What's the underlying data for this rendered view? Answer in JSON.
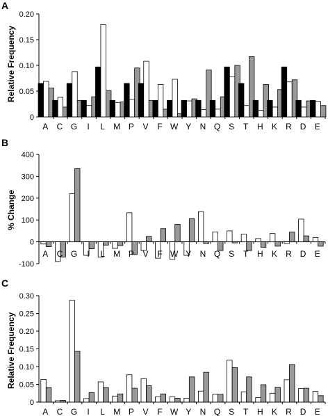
{
  "colors": {
    "black": "#000000",
    "white": "#ffffff",
    "gray": "#999999",
    "axis": "#000000"
  },
  "chart_data": [
    {
      "panel": "A",
      "type": "bar",
      "ylabel": "Relative Frequency",
      "ylim": [
        0,
        0.2
      ],
      "yticks": [
        0,
        0.05,
        0.1,
        0.15,
        0.2
      ],
      "ytick_labels": [
        "0",
        "0.05",
        "0.10",
        "0.15",
        "0.20"
      ],
      "categories": [
        "A",
        "C",
        "G",
        "I",
        "L",
        "M",
        "P",
        "V",
        "F",
        "W",
        "Y",
        "N",
        "Q",
        "S",
        "T",
        "H",
        "K",
        "R",
        "D",
        "E"
      ],
      "series": [
        {
          "fill": "black",
          "values": [
            0.065,
            0.032,
            0.065,
            0.032,
            0.097,
            0.032,
            0.065,
            0.065,
            0.032,
            0.032,
            0.032,
            0.032,
            0.032,
            0.097,
            0.065,
            0.032,
            0.032,
            0.097,
            0.032,
            0.032
          ]
        },
        {
          "fill": "white",
          "values": [
            0.069,
            0.038,
            0.088,
            0.022,
            0.179,
            0.028,
            0.034,
            0.108,
            0.063,
            0.073,
            0.031,
            0.014,
            0.015,
            0.078,
            0.022,
            0.013,
            0.019,
            0.068,
            0.019,
            0.03
          ]
        },
        {
          "fill": "gray",
          "values": [
            0.056,
            0.019,
            0.032,
            0.039,
            0.051,
            0.029,
            0.095,
            0.032,
            0.015,
            0.006,
            0.035,
            0.091,
            0.039,
            0.1,
            0.117,
            0.063,
            0.053,
            0.072,
            0.031,
            0.022
          ]
        }
      ]
    },
    {
      "panel": "B",
      "type": "bar",
      "ylabel": "% Change",
      "ylim": [
        -100,
        400
      ],
      "yticks": [
        -100,
        0,
        100,
        200,
        300,
        400
      ],
      "ytick_labels": [
        "-100",
        "0",
        "100",
        "200",
        "300",
        "400"
      ],
      "categories": [
        "A",
        "C",
        "G",
        "I",
        "L",
        "M",
        "P",
        "V",
        "F",
        "W",
        "Y",
        "N",
        "Q",
        "S",
        "T",
        "H",
        "K",
        "R",
        "D",
        "E"
      ],
      "series": [
        {
          "fill": "white",
          "values": [
            -10,
            -90,
            220,
            -62,
            -70,
            -30,
            133,
            -40,
            -75,
            -80,
            -62,
            138,
            45,
            50,
            35,
            15,
            38,
            -8,
            104,
            20
          ]
        },
        {
          "fill": "gray",
          "values": [
            -22,
            -70,
            335,
            -32,
            -15,
            -17,
            -58,
            25,
            60,
            80,
            106,
            -8,
            -40,
            -5,
            -40,
            -25,
            -20,
            45,
            27,
            -20
          ]
        }
      ]
    },
    {
      "panel": "C",
      "type": "bar",
      "ylabel": "Relative Frequency",
      "ylim": [
        0,
        0.3
      ],
      "yticks": [
        0,
        0.05,
        0.1,
        0.15,
        0.2,
        0.25,
        0.3
      ],
      "ytick_labels": [
        "0",
        "0.05",
        "0.10",
        "0.15",
        "0.20",
        "0.25",
        "0.30"
      ],
      "categories": [
        "A",
        "C",
        "G",
        "I",
        "L",
        "M",
        "P",
        "V",
        "F",
        "W",
        "Y",
        "N",
        "Q",
        "S",
        "T",
        "H",
        "K",
        "R",
        "D",
        "E"
      ],
      "series": [
        {
          "fill": "white",
          "values": [
            0.064,
            0.004,
            0.287,
            0.01,
            0.057,
            0.017,
            0.077,
            0.066,
            0.015,
            0.015,
            0.011,
            0.031,
            0.022,
            0.118,
            0.029,
            0.013,
            0.025,
            0.063,
            0.038,
            0.03
          ]
        },
        {
          "fill": "gray",
          "values": [
            0.041,
            0.005,
            0.143,
            0.027,
            0.041,
            0.023,
            0.039,
            0.046,
            0.023,
            0.011,
            0.071,
            0.084,
            0.022,
            0.097,
            0.071,
            0.049,
            0.042,
            0.106,
            0.039,
            0.018
          ]
        }
      ]
    }
  ]
}
